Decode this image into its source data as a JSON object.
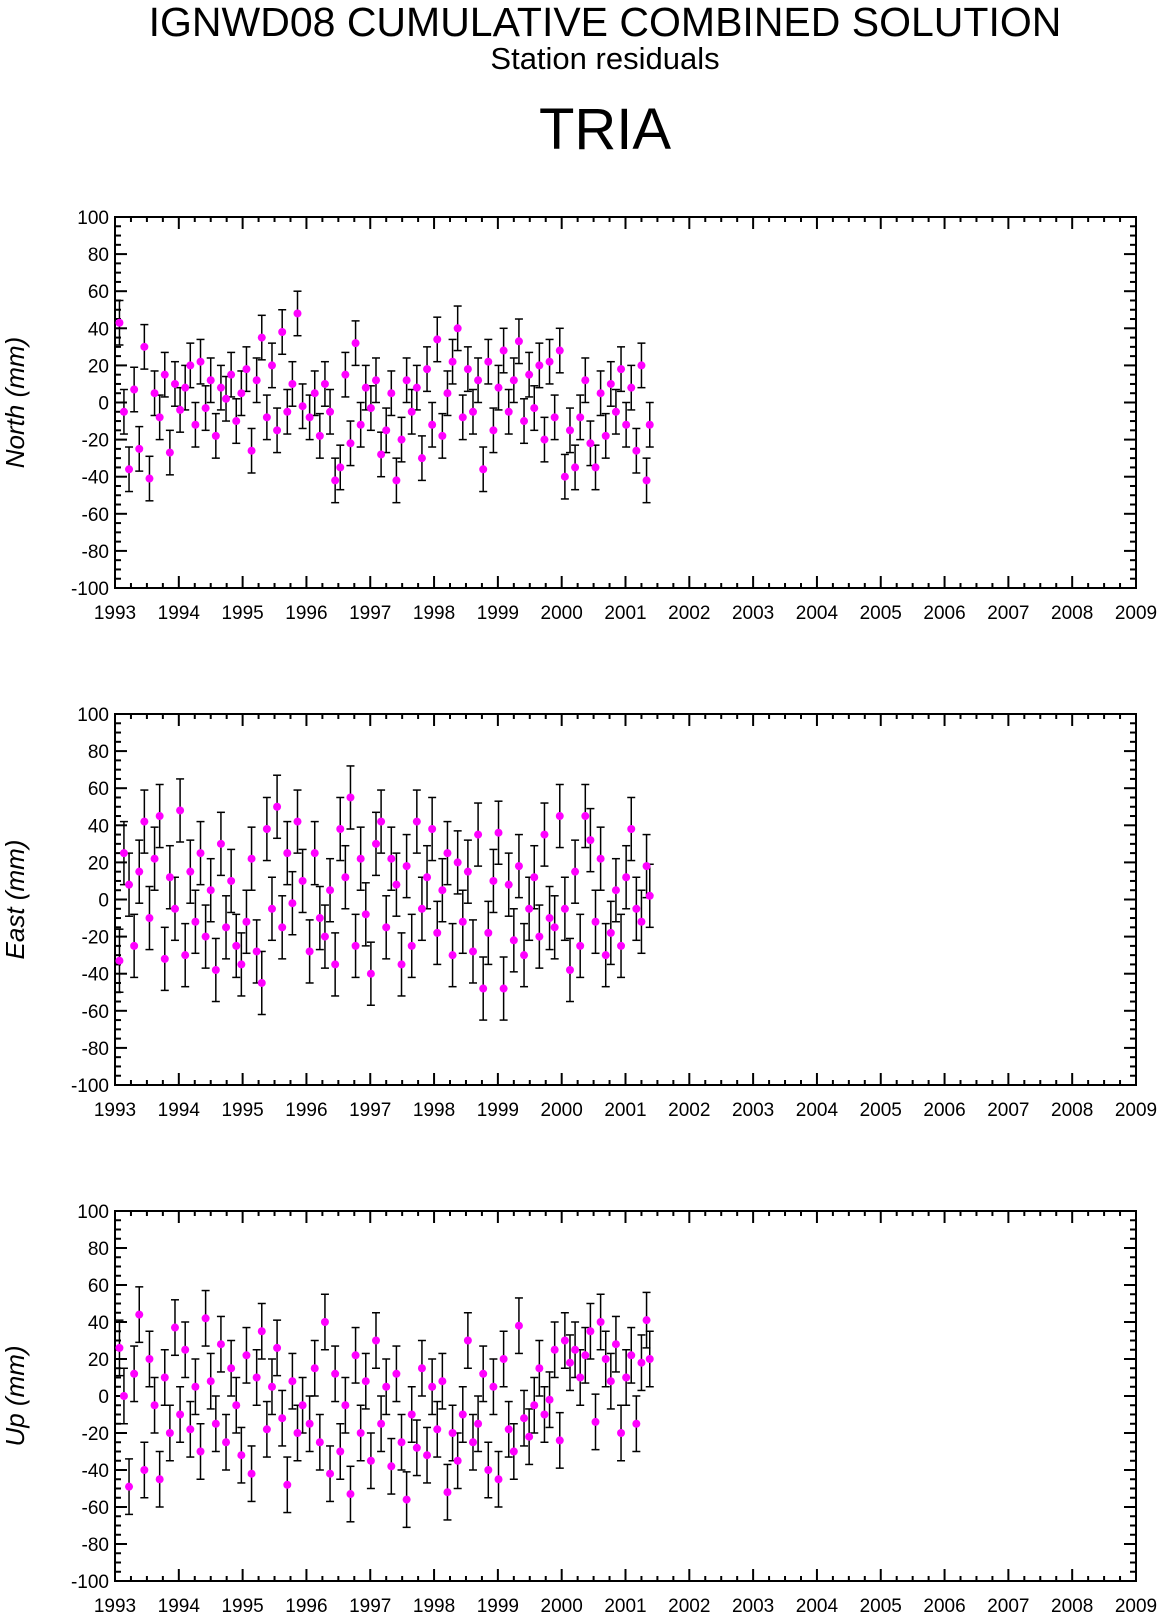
{
  "header": {
    "title": "IGNWD08 CUMULATIVE COMBINED SOLUTION",
    "subtitle": "Station residuals",
    "station": "TRIA"
  },
  "colors": {
    "marker": "#ff00ff",
    "errorbar": "#000000",
    "axis": "#000000",
    "background": "#ffffff"
  },
  "chart_data": [
    {
      "type": "scatter",
      "ylabel": "North (mm)",
      "xlim": [
        1993,
        2009
      ],
      "ylim": [
        -100,
        100
      ],
      "x_ticks": [
        "1993",
        "1994",
        "1995",
        "1996",
        "1997",
        "1998",
        "1999",
        "2000",
        "2001",
        "2002",
        "2003",
        "2004",
        "2005",
        "2006",
        "2007",
        "2008",
        "2009"
      ],
      "y_ticks": [
        "100",
        "80",
        "60",
        "40",
        "20",
        "0",
        "-20",
        "-40",
        "-60",
        "-80",
        "-100"
      ],
      "error": 12,
      "series": [
        {
          "x": [
            1993.07,
            1993.14,
            1993.22,
            1993.3,
            1993.38,
            1993.46,
            1993.54,
            1993.62,
            1993.7,
            1993.78,
            1993.86,
            1993.94,
            1994.02,
            1994.1,
            1994.18,
            1994.26,
            1994.34,
            1994.42,
            1994.5,
            1994.58,
            1994.66,
            1994.74,
            1994.82,
            1994.9,
            1994.98,
            1995.06,
            1995.14,
            1995.22,
            1995.3,
            1995.38,
            1995.46,
            1995.54,
            1995.62,
            1995.7,
            1995.78,
            1995.86,
            1995.94,
            1996.05,
            1996.13,
            1996.21,
            1996.29,
            1996.37,
            1996.45,
            1996.53,
            1996.61,
            1996.69,
            1996.77,
            1996.85,
            1996.93,
            1997.01,
            1997.09,
            1997.17,
            1997.25,
            1997.33,
            1997.41,
            1997.49,
            1997.57,
            1997.65,
            1997.73,
            1997.81,
            1997.89,
            1997.97,
            1998.05,
            1998.13,
            1998.21,
            1998.29,
            1998.37,
            1998.45,
            1998.53,
            1998.61,
            1998.69,
            1998.77,
            1998.85,
            1998.93,
            1999.01,
            1999.09,
            1999.17,
            1999.25,
            1999.33,
            1999.41,
            1999.49,
            1999.57,
            1999.65,
            1999.73,
            1999.81,
            1999.89,
            1999.97,
            2000.05,
            2000.13,
            2000.21,
            2000.29,
            2000.37,
            2000.45,
            2000.53,
            2000.61,
            2000.69,
            2000.77,
            2000.85,
            2000.93,
            2001.01,
            2001.09,
            2001.17,
            2001.25,
            2001.33,
            2001.38
          ],
          "y": [
            43,
            -5,
            -36,
            7,
            -25,
            30,
            -41,
            5,
            -8,
            15,
            -27,
            10,
            -4,
            8,
            20,
            -12,
            22,
            -3,
            12,
            -18,
            8,
            2,
            15,
            -10,
            5,
            18,
            -26,
            12,
            35,
            -8,
            20,
            -15,
            38,
            -5,
            10,
            48,
            -2,
            -8,
            5,
            -18,
            10,
            -5,
            -42,
            -35,
            15,
            -22,
            32,
            -12,
            8,
            -3,
            12,
            -28,
            -15,
            5,
            -42,
            -20,
            12,
            -5,
            8,
            -30,
            18,
            -12,
            34,
            -18,
            5,
            22,
            40,
            -8,
            18,
            -5,
            12,
            -36,
            22,
            -15,
            8,
            28,
            -5,
            12,
            33,
            -10,
            15,
            -3,
            20,
            -20,
            22,
            -8,
            28,
            -40,
            -15,
            -35,
            -8,
            12,
            -22,
            -35,
            5,
            -18,
            10,
            -5,
            18,
            -12,
            8,
            -26,
            20,
            -42,
            -12
          ]
        }
      ]
    },
    {
      "type": "scatter",
      "ylabel": "East (mm)",
      "xlim": [
        1993,
        2009
      ],
      "ylim": [
        -100,
        100
      ],
      "x_ticks": [
        "1993",
        "1994",
        "1995",
        "1996",
        "1997",
        "1998",
        "1999",
        "2000",
        "2001",
        "2002",
        "2003",
        "2004",
        "2005",
        "2006",
        "2007",
        "2008",
        "2009"
      ],
      "y_ticks": [
        "100",
        "80",
        "60",
        "40",
        "20",
        "0",
        "-20",
        "-40",
        "-60",
        "-80",
        "-100"
      ],
      "error": 17,
      "series": [
        {
          "x": [
            1993.07,
            1993.14,
            1993.22,
            1993.3,
            1993.38,
            1993.46,
            1993.54,
            1993.62,
            1993.7,
            1993.78,
            1993.86,
            1993.94,
            1994.02,
            1994.1,
            1994.18,
            1994.26,
            1994.34,
            1994.42,
            1994.5,
            1994.58,
            1994.66,
            1994.74,
            1994.82,
            1994.9,
            1994.98,
            1995.06,
            1995.14,
            1995.22,
            1995.3,
            1995.38,
            1995.46,
            1995.54,
            1995.62,
            1995.7,
            1995.78,
            1995.86,
            1995.94,
            1996.05,
            1996.13,
            1996.21,
            1996.29,
            1996.37,
            1996.45,
            1996.53,
            1996.61,
            1996.69,
            1996.77,
            1996.85,
            1996.93,
            1997.01,
            1997.09,
            1997.17,
            1997.25,
            1997.33,
            1997.41,
            1997.49,
            1997.57,
            1997.65,
            1997.73,
            1997.81,
            1997.89,
            1997.97,
            1998.05,
            1998.13,
            1998.21,
            1998.29,
            1998.37,
            1998.45,
            1998.53,
            1998.61,
            1998.69,
            1998.77,
            1998.85,
            1998.93,
            1999.01,
            1999.09,
            1999.17,
            1999.25,
            1999.33,
            1999.41,
            1999.49,
            1999.57,
            1999.65,
            1999.73,
            1999.81,
            1999.89,
            1999.97,
            2000.05,
            2000.13,
            2000.21,
            2000.29,
            2000.37,
            2000.45,
            2000.53,
            2000.61,
            2000.69,
            2000.77,
            2000.85,
            2000.93,
            2001.01,
            2001.09,
            2001.17,
            2001.25,
            2001.33,
            2001.38
          ],
          "y": [
            -33,
            25,
            8,
            -25,
            15,
            42,
            -10,
            22,
            45,
            -32,
            12,
            -5,
            48,
            -30,
            15,
            -12,
            25,
            -20,
            5,
            -38,
            30,
            -15,
            10,
            -25,
            -35,
            -12,
            22,
            -28,
            -45,
            38,
            -5,
            50,
            -15,
            25,
            -2,
            42,
            10,
            -28,
            25,
            -10,
            -20,
            5,
            -35,
            38,
            12,
            55,
            -25,
            22,
            -8,
            -40,
            30,
            42,
            -15,
            22,
            8,
            -35,
            18,
            -25,
            42,
            -5,
            12,
            38,
            -18,
            5,
            25,
            -30,
            20,
            -12,
            15,
            -28,
            35,
            -48,
            -18,
            10,
            36,
            -48,
            8,
            -22,
            18,
            -30,
            -5,
            12,
            -20,
            35,
            -10,
            -15,
            45,
            -5,
            -38,
            15,
            -25,
            45,
            32,
            -12,
            22,
            -30,
            -18,
            5,
            -25,
            12,
            38,
            -5,
            -12,
            18,
            2
          ]
        }
      ]
    },
    {
      "type": "scatter",
      "ylabel": "Up (mm)",
      "xlim": [
        1993,
        2009
      ],
      "ylim": [
        -100,
        100
      ],
      "x_ticks": [
        "1993",
        "1994",
        "1995",
        "1996",
        "1997",
        "1998",
        "1999",
        "2000",
        "2001",
        "2002",
        "2003",
        "2004",
        "2005",
        "2006",
        "2007",
        "2008",
        "2009"
      ],
      "y_ticks": [
        "100",
        "80",
        "60",
        "40",
        "20",
        "0",
        "-20",
        "-40",
        "-60",
        "-80",
        "-100"
      ],
      "error": 15,
      "series": [
        {
          "x": [
            1993.07,
            1993.14,
            1993.22,
            1993.3,
            1993.38,
            1993.46,
            1993.54,
            1993.62,
            1993.7,
            1993.78,
            1993.86,
            1993.94,
            1994.02,
            1994.1,
            1994.18,
            1994.26,
            1994.34,
            1994.42,
            1994.5,
            1994.58,
            1994.66,
            1994.74,
            1994.82,
            1994.9,
            1994.98,
            1995.06,
            1995.14,
            1995.22,
            1995.3,
            1995.38,
            1995.46,
            1995.54,
            1995.62,
            1995.7,
            1995.78,
            1995.86,
            1995.94,
            1996.05,
            1996.13,
            1996.21,
            1996.29,
            1996.37,
            1996.45,
            1996.53,
            1996.61,
            1996.69,
            1996.77,
            1996.85,
            1996.93,
            1997.01,
            1997.09,
            1997.17,
            1997.25,
            1997.33,
            1997.41,
            1997.49,
            1997.57,
            1997.65,
            1997.73,
            1997.81,
            1997.89,
            1997.97,
            1998.05,
            1998.13,
            1998.21,
            1998.29,
            1998.37,
            1998.45,
            1998.53,
            1998.61,
            1998.69,
            1998.77,
            1998.85,
            1998.93,
            1999.01,
            1999.09,
            1999.17,
            1999.25,
            1999.33,
            1999.41,
            1999.49,
            1999.57,
            1999.65,
            1999.73,
            1999.81,
            1999.89,
            1999.97,
            2000.05,
            2000.13,
            2000.21,
            2000.29,
            2000.37,
            2000.45,
            2000.53,
            2000.61,
            2000.69,
            2000.77,
            2000.85,
            2000.93,
            2001.01,
            2001.09,
            2001.17,
            2001.25,
            2001.33,
            2001.38
          ],
          "y": [
            26,
            0,
            -49,
            12,
            44,
            -40,
            20,
            -5,
            -45,
            10,
            -20,
            37,
            -10,
            25,
            -18,
            5,
            -30,
            42,
            8,
            -15,
            28,
            -25,
            15,
            -5,
            -32,
            22,
            -42,
            10,
            35,
            -18,
            5,
            26,
            -12,
            -48,
            8,
            -20,
            -5,
            -15,
            15,
            -25,
            40,
            -42,
            12,
            -30,
            -5,
            -53,
            22,
            -20,
            8,
            -35,
            30,
            -15,
            5,
            -38,
            12,
            -25,
            -56,
            -10,
            -28,
            15,
            -32,
            5,
            -18,
            8,
            -52,
            -20,
            -35,
            -10,
            30,
            -25,
            -15,
            12,
            -40,
            5,
            -45,
            20,
            -18,
            -30,
            38,
            -12,
            -22,
            -5,
            15,
            -10,
            -2,
            25,
            -24,
            30,
            18,
            25,
            10,
            22,
            35,
            -14,
            40,
            20,
            8,
            28,
            -20,
            10,
            22,
            -15,
            18,
            41,
            20
          ]
        }
      ]
    }
  ]
}
